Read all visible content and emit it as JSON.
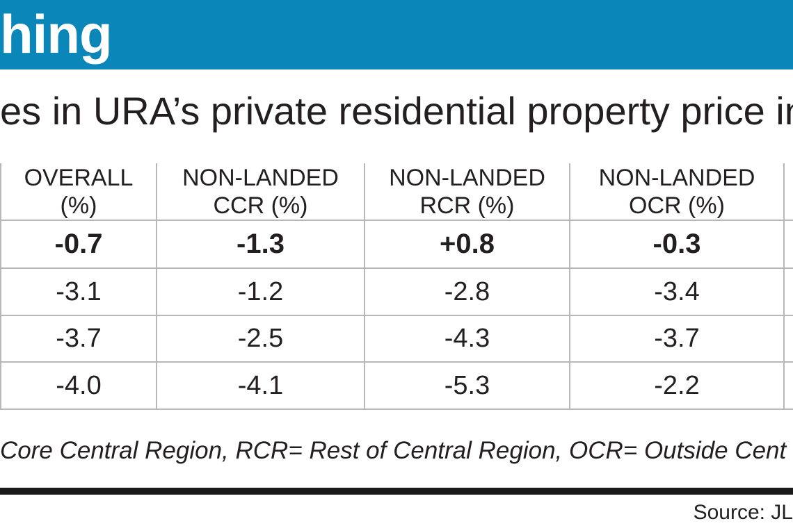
{
  "header": {
    "title": "hing",
    "subtitle": "es in URA’s private residential property price ind",
    "banner_color": "#0a86b8"
  },
  "chart_data": {
    "type": "table",
    "columns": [
      {
        "line1": "OVERALL",
        "line2": "(%)"
      },
      {
        "line1": "NON-LANDED",
        "line2": "CCR (%)"
      },
      {
        "line1": "NON-LANDED",
        "line2": "RCR (%)"
      },
      {
        "line1": "NON-LANDED",
        "line2": "OCR (%)"
      }
    ],
    "rows": [
      {
        "emphasis": true,
        "values": [
          "-0.7",
          "-1.3",
          "+0.8",
          "-0.3"
        ]
      },
      {
        "emphasis": false,
        "values": [
          "-3.1",
          "-1.2",
          "-2.8",
          "-3.4"
        ]
      },
      {
        "emphasis": false,
        "values": [
          "-3.7",
          "-2.5",
          "-4.3",
          "-3.7"
        ]
      },
      {
        "emphasis": false,
        "values": [
          "-4.0",
          "-4.1",
          "-5.3",
          "-2.2"
        ]
      }
    ]
  },
  "footnote": "Core Central Region, RCR= Rest of Central Region, OCR= Outside Cent",
  "source": "Source: JL"
}
